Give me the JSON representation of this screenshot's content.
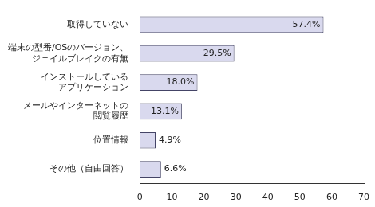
{
  "chart_data": {
    "type": "bar",
    "orientation": "horizontal",
    "categories": [
      "取得していない",
      "端末の型番/OSのバージョン、\nジェイルブレイクの有無",
      "インストールしている\nアプリケーション",
      "メールやインターネットの\n閲覧履歴",
      "位置情報",
      "その他（自由回答）"
    ],
    "values": [
      57.4,
      29.5,
      18.0,
      13.1,
      4.9,
      6.6
    ],
    "value_labels": [
      "57.4%",
      "29.5%",
      "18.0%",
      "13.1%",
      "4.9%",
      "6.6%"
    ],
    "data_labels": true,
    "color": "#d9d9ee",
    "xlim": [
      0,
      70
    ],
    "xticks": [
      0,
      10,
      20,
      30,
      40,
      50,
      60,
      70
    ],
    "grid": false
  }
}
